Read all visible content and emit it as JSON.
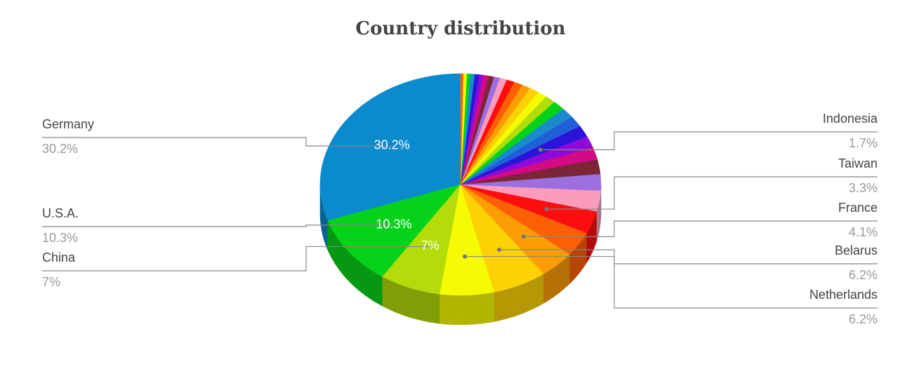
{
  "chart_data": {
    "type": "pie",
    "title": "Country distribution",
    "categories": [
      "Germany",
      "U.S.A.",
      "China",
      "Netherlands",
      "Belarus",
      "France",
      null,
      "Taiwan",
      null,
      null,
      null,
      null,
      null,
      "Indonesia",
      null,
      null,
      null,
      null,
      null,
      null,
      null,
      null,
      null,
      null,
      null,
      null,
      null,
      null,
      null,
      null,
      null,
      null,
      null
    ],
    "values": [
      30.2,
      10.3,
      7,
      6.2,
      6.2,
      4.1,
      3.6,
      3.3,
      3.0,
      2.4,
      2.1,
      1.8,
      1.7,
      1.7,
      1.6,
      1.5,
      1.4,
      1.2,
      1.1,
      1.1,
      1.0,
      1.0,
      0.9,
      0.8,
      0.7,
      0.6,
      0.6,
      0.5,
      0.5,
      0.5,
      0.4,
      0.4,
      0.3
    ],
    "value_labels": [
      "30.2%",
      "10.3%",
      "7%",
      "6.2%",
      "6.2%",
      "4.1%",
      null,
      "3.3%",
      null,
      null,
      null,
      null,
      null,
      "1.7%",
      null,
      null,
      null,
      null,
      null,
      null,
      null,
      null,
      null,
      null,
      null,
      null,
      null,
      null,
      null,
      null,
      null,
      null,
      null
    ],
    "colors": [
      "#0b8acd",
      "#05d31a",
      "#b3dc0a",
      "#f4fb02",
      "#fdd205",
      "#fd9d05",
      "#fd5f05",
      "#fd0d0d",
      "#fb9cbc",
      "#9c6fe0",
      "#7a2637",
      "#d40a85",
      "#8e0ad8",
      "#2a14d8",
      "#1f5fd8",
      "#1a8acd",
      "#05d31a",
      "#b3dc0a",
      "#f4fb02",
      "#fdd205",
      "#fd9d05",
      "#fd5f05",
      "#fd0d0d",
      "#fb9cbc",
      "#9c6fe0",
      "#7a2637",
      "#d40a85",
      "#8e0ad8",
      "#2a14d8",
      "#1a8acd",
      "#05d31a",
      "#f4fb02",
      "#fd5f05"
    ]
  }
}
